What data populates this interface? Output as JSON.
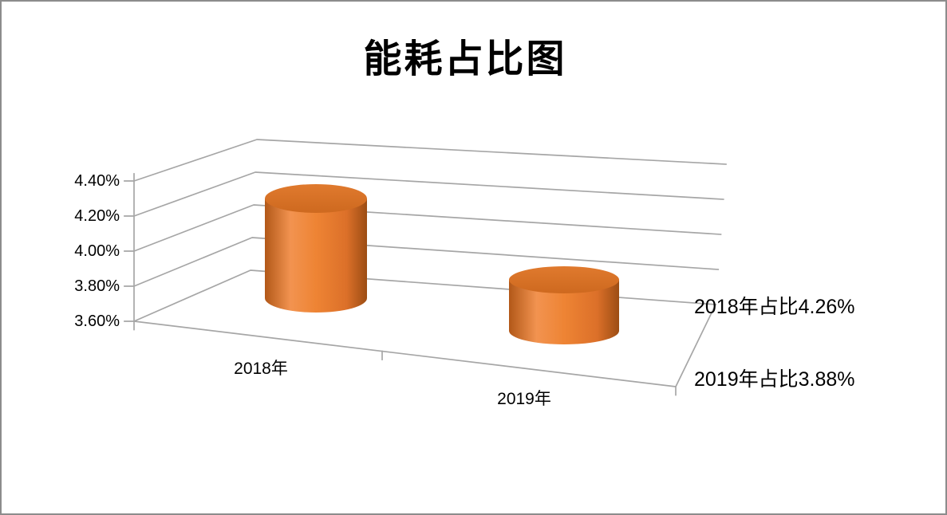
{
  "chart_data": {
    "type": "bar",
    "variant": "3d-cylinder",
    "title": "能耗占比图",
    "categories": [
      "2018年",
      "2019年"
    ],
    "values": [
      4.26,
      3.88
    ],
    "value_unit": "%",
    "series": [
      {
        "name": "占比",
        "values": [
          4.26,
          3.88
        ]
      }
    ],
    "data_labels": [
      "2018年占比4.26%",
      "2019年占比3.88%"
    ],
    "y_tick_labels": [
      "4.40%",
      "4.20%",
      "4.00%",
      "3.80%",
      "3.60%"
    ],
    "ylim": [
      3.6,
      4.4
    ],
    "y_tick_interval": 0.2,
    "xlabel": "",
    "ylabel": "",
    "grid": true,
    "legend": "none",
    "colors": {
      "cylinder_base": "#ED7D31",
      "cylinder_side_stops": [
        "#B25818",
        "#F29350",
        "#EE8434",
        "#DC7029",
        "#9C4D14"
      ],
      "cylinder_top_stops": [
        "#E07A2E",
        "#CE691F"
      ],
      "gridline": "#A6A6A6",
      "axis": "#A6A6A6",
      "text": "#000000",
      "frame_border": "#8C8C8C",
      "background": "#FFFFFF"
    }
  }
}
